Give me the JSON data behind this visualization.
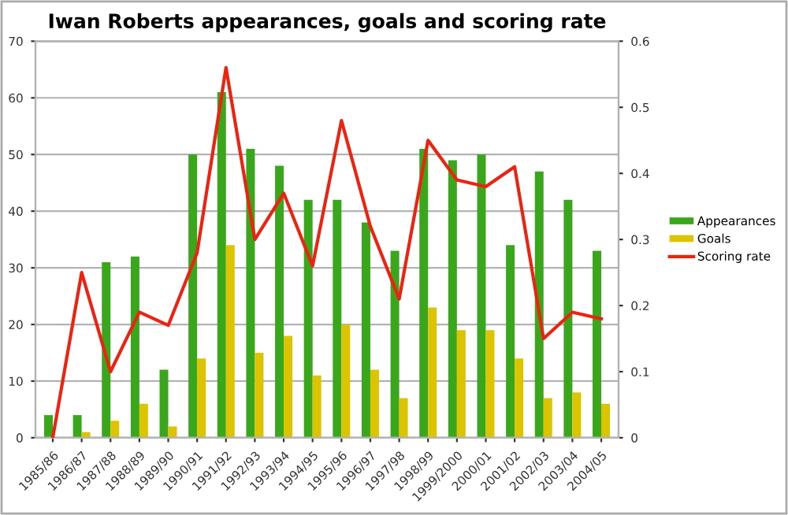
{
  "chart_data": {
    "type": "bar",
    "title": "Iwan Roberts appearances, goals and scoring rate",
    "categories": [
      "1985/86",
      "1986/87",
      "1987/88",
      "1988/89",
      "1989/90",
      "1990/91",
      "1991/92",
      "1992/93",
      "1993/94",
      "1994/95",
      "1995/96",
      "1996/97",
      "1997/98",
      "1998/99",
      "1999/2000",
      "2000/01",
      "2001/02",
      "2002/03",
      "2003/04",
      "2004/05"
    ],
    "series": [
      {
        "name": "Appearances",
        "color": "#3aa61c",
        "values": [
          4,
          4,
          31,
          32,
          12,
          50,
          61,
          51,
          48,
          42,
          42,
          38,
          33,
          51,
          49,
          50,
          34,
          47,
          42,
          33
        ]
      },
      {
        "name": "Goals",
        "color": "#dcc400",
        "values": [
          0,
          1,
          3,
          6,
          2,
          14,
          34,
          15,
          18,
          11,
          20,
          12,
          7,
          23,
          19,
          19,
          14,
          7,
          8,
          6
        ]
      },
      {
        "name": "Scoring rate",
        "type": "line",
        "axis": "y2",
        "color": "#ee2211",
        "values": [
          0,
          0.25,
          0.1,
          0.19,
          0.17,
          0.28,
          0.56,
          0.3,
          0.37,
          0.26,
          0.48,
          0.32,
          0.21,
          0.45,
          0.39,
          0.38,
          0.41,
          0.15,
          0.19,
          0.18
        ]
      }
    ],
    "ylim": [
      0,
      70
    ],
    "yticks": [
      0,
      10,
      20,
      30,
      40,
      50,
      60,
      70
    ],
    "y2lim": [
      0,
      0.6
    ],
    "y2ticks": [
      0,
      0.1,
      0.2,
      0.3,
      0.4,
      0.5,
      0.6
    ],
    "grid": "y",
    "legend": "right",
    "marker": "none"
  }
}
